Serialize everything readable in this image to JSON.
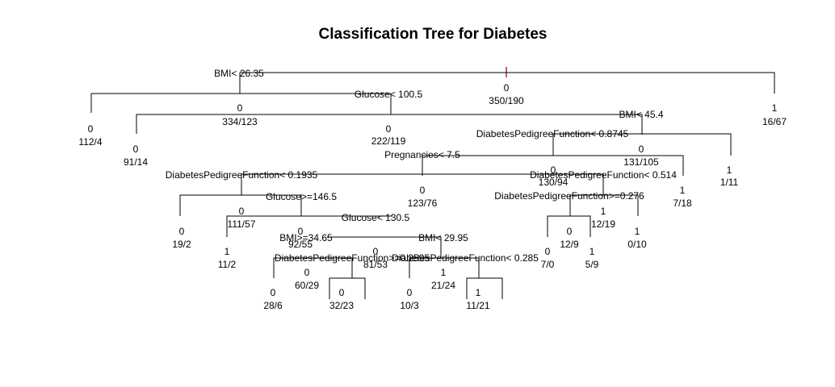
{
  "title": "Classification Tree for Diabetes",
  "root": {
    "class": "0",
    "counts": "350/190"
  },
  "splits": [
    "BMI< 26.35",
    "Glucose< 100.5",
    "BMI< 45.4",
    "DiabetesPedigreeFunction< 0.8745",
    "Pregnancies< 7.5",
    "DiabetesPedigreeFunction< 0.1935",
    "DiabetesPedigreeFunction< 0.514",
    "DiabetesPedigreeFunction>=0.276",
    "Glucose>=146.5",
    "Glucose< 130.5",
    "BMI>=34.65",
    "BMI< 29.95",
    "DiabetesPedigreeFunction>=0.2595",
    "DiabetesPedigreeFunction< 0.285"
  ],
  "nodes": [
    {
      "class": "0",
      "counts": "112/4"
    },
    {
      "class": "1",
      "counts": "16/67"
    },
    {
      "class": "0",
      "counts": "334/123"
    },
    {
      "class": "0",
      "counts": "91/14"
    },
    {
      "class": "0",
      "counts": "222/119"
    },
    {
      "class": "0",
      "counts": "131/105"
    },
    {
      "class": "1",
      "counts": "1/11"
    },
    {
      "class": "0",
      "counts": "130/94"
    },
    {
      "class": "1",
      "counts": "7/18"
    },
    {
      "class": "0",
      "counts": "123/76"
    },
    {
      "class": "0",
      "counts": "111/57"
    },
    {
      "class": "0",
      "counts": "19/2"
    },
    {
      "class": "1",
      "counts": "12/19"
    },
    {
      "class": "1",
      "counts": "0/10"
    },
    {
      "class": "0",
      "counts": "12/9"
    },
    {
      "class": "0",
      "counts": "7/0"
    },
    {
      "class": "1",
      "counts": "5/9"
    },
    {
      "class": "1",
      "counts": "11/2"
    },
    {
      "class": "0",
      "counts": "92/55"
    },
    {
      "class": "0",
      "counts": "81/53"
    },
    {
      "class": "0",
      "counts": "60/29"
    },
    {
      "class": "1",
      "counts": "21/24"
    },
    {
      "class": "0",
      "counts": "28/6"
    },
    {
      "class": "0",
      "counts": "32/23"
    },
    {
      "class": "0",
      "counts": "10/3"
    },
    {
      "class": "1",
      "counts": "11/21"
    }
  ]
}
